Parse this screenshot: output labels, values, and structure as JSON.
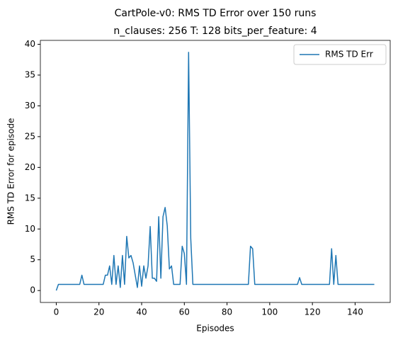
{
  "chart_data": {
    "type": "line",
    "suptitle": "CartPole-v0: RMS TD Error over 150 runs",
    "title": "n_clauses: 256 T: 128 bits_per_feature: 4",
    "xlabel": "Episodes",
    "ylabel": "RMS TD Error for episode",
    "x": [
      0,
      1,
      2,
      3,
      4,
      5,
      6,
      7,
      8,
      9,
      10,
      11,
      12,
      13,
      14,
      15,
      16,
      17,
      18,
      19,
      20,
      21,
      22,
      23,
      24,
      25,
      26,
      27,
      28,
      29,
      30,
      31,
      32,
      33,
      34,
      35,
      36,
      37,
      38,
      39,
      40,
      41,
      42,
      43,
      44,
      45,
      46,
      47,
      48,
      49,
      50,
      51,
      52,
      53,
      54,
      55,
      56,
      57,
      58,
      59,
      60,
      61,
      62,
      63,
      64,
      65,
      66,
      67,
      68,
      69,
      70,
      71,
      72,
      73,
      74,
      75,
      76,
      77,
      78,
      79,
      80,
      81,
      82,
      83,
      84,
      85,
      86,
      87,
      88,
      89,
      90,
      91,
      92,
      93,
      94,
      95,
      96,
      97,
      98,
      99,
      100,
      101,
      102,
      103,
      104,
      105,
      106,
      107,
      108,
      109,
      110,
      111,
      112,
      113,
      114,
      115,
      116,
      117,
      118,
      119,
      120,
      121,
      122,
      123,
      124,
      125,
      126,
      127,
      128,
      129,
      130,
      131,
      132,
      133,
      134,
      135,
      136,
      137,
      138,
      139,
      140,
      141,
      142,
      143,
      144,
      145,
      146,
      147,
      148,
      149
    ],
    "series": [
      {
        "name": "RMS TD Err",
        "color": "#1f77b4",
        "values": [
          0,
          1,
          1,
          1,
          1,
          1,
          1,
          1,
          1,
          1,
          1,
          1,
          2.5,
          1,
          1,
          1,
          1,
          1,
          1,
          1,
          1,
          1,
          1,
          2.5,
          2.5,
          4,
          1,
          5.7,
          1,
          4,
          0.5,
          5.7,
          1,
          8.8,
          5.3,
          5.7,
          4.5,
          2.5,
          0.5,
          4,
          0.7,
          4,
          2,
          4,
          10.4,
          2,
          2,
          1.5,
          12,
          2,
          12,
          13.5,
          10.5,
          3.5,
          4,
          1,
          1,
          1,
          1,
          7.2,
          6,
          1,
          38.7,
          8.5,
          1,
          1,
          1,
          1,
          1,
          1,
          1,
          1,
          1,
          1,
          1,
          1,
          1,
          1,
          1,
          1,
          1,
          1,
          1,
          1,
          1,
          1,
          1,
          1,
          1,
          1,
          1,
          7.2,
          6.8,
          1,
          1,
          1,
          1,
          1,
          1,
          1,
          1,
          1,
          1,
          1,
          1,
          1,
          1,
          1,
          1,
          1,
          1,
          1,
          1,
          1,
          2.1,
          1,
          1,
          1,
          1,
          1,
          1,
          1,
          1,
          1,
          1,
          1,
          1,
          1,
          1,
          6.8,
          1,
          5.7,
          1,
          1,
          1,
          1,
          1,
          1,
          1,
          1,
          1,
          1,
          1,
          1,
          1,
          1,
          1,
          1,
          1,
          1
        ]
      }
    ],
    "xlim": [
      -7.45,
      156.45
    ],
    "ylim": [
      -1.935,
      40.635
    ],
    "xticks": [
      0,
      20,
      40,
      60,
      80,
      100,
      120,
      140
    ],
    "yticks": [
      0,
      5,
      10,
      15,
      20,
      25,
      30,
      35,
      40
    ],
    "legend": "upper right"
  }
}
